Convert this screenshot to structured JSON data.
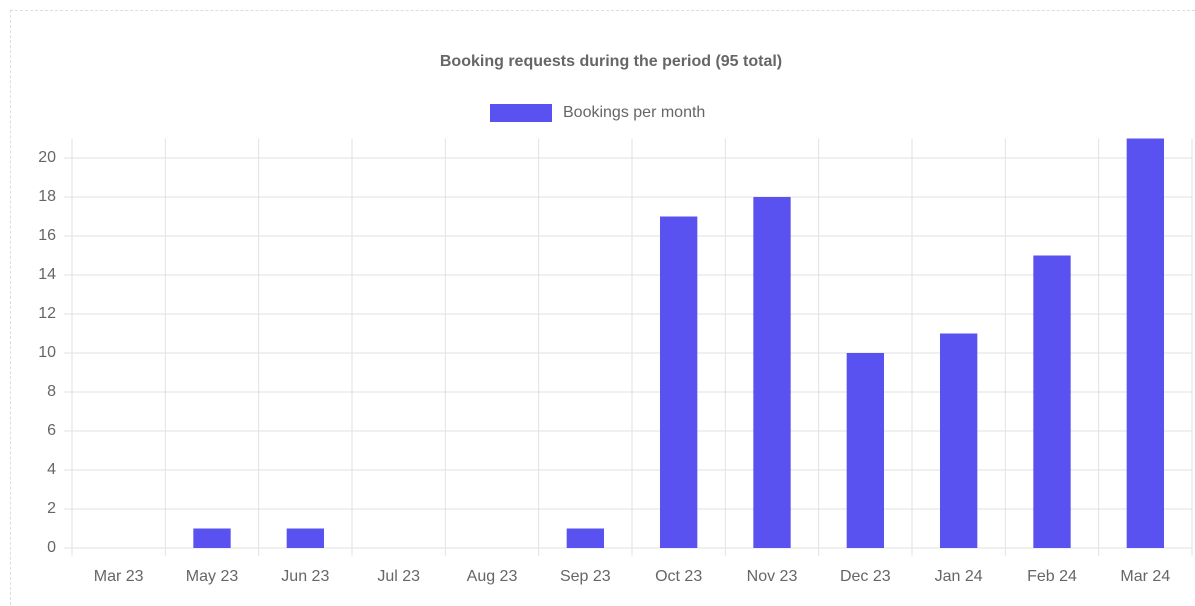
{
  "chart_data": {
    "type": "bar",
    "title": "Booking requests during the period (95 total)",
    "categories": [
      "Mar 23",
      "May 23",
      "Jun 23",
      "Jul 23",
      "Aug 23",
      "Sep 23",
      "Oct 23",
      "Nov 23",
      "Dec 23",
      "Jan 24",
      "Feb 24",
      "Mar 24"
    ],
    "series": [
      {
        "name": "Bookings per month",
        "color": "#5a52f0",
        "values": [
          0,
          1,
          1,
          0,
          0,
          1,
          17,
          18,
          10,
          11,
          15,
          21
        ]
      }
    ],
    "ylim": [
      0,
      21
    ],
    "yticks": [
      0,
      2,
      4,
      6,
      8,
      10,
      12,
      14,
      16,
      18,
      20
    ],
    "grid": true,
    "legend": "top"
  }
}
